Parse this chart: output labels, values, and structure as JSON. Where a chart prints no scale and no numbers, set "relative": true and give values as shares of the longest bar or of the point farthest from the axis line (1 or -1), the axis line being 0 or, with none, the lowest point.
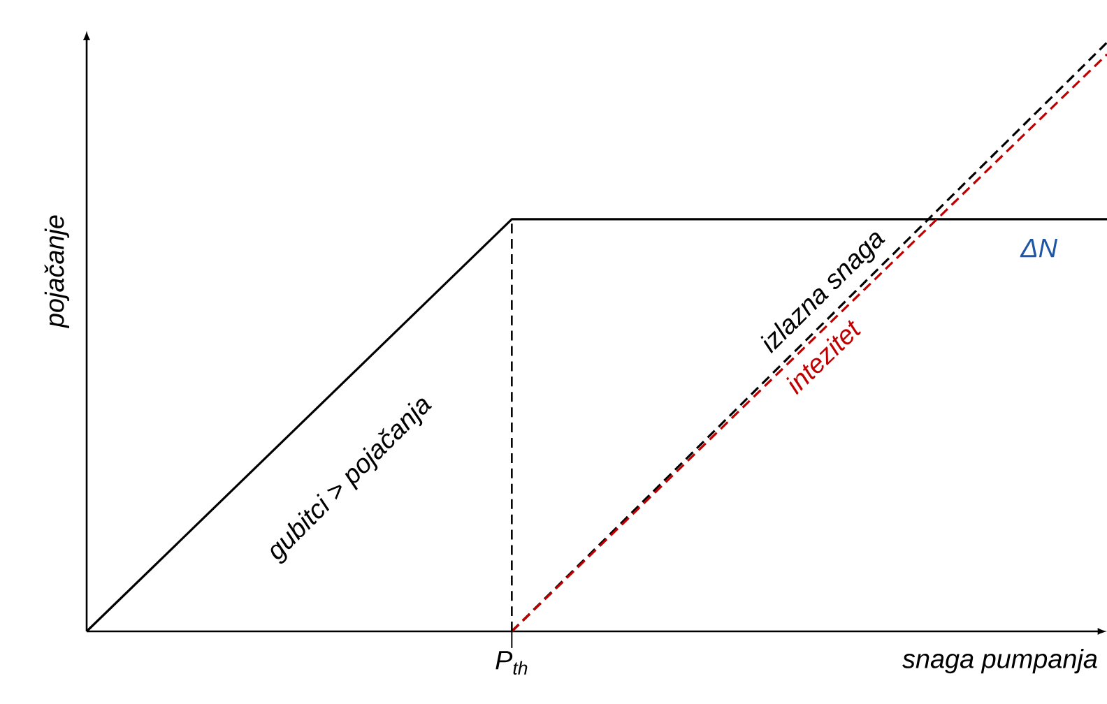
{
  "chart_data": {
    "type": "line",
    "relative": true,
    "xlabel": "snaga pumpanja",
    "ylabel": "pojačanje",
    "categories": [
      null,
      null,
      null,
      null,
      null,
      null,
      null,
      null,
      null,
      null,
      null,
      null,
      null,
      null,
      null,
      null,
      null,
      null,
      null,
      null,
      null,
      null,
      null,
      null,
      null
    ],
    "series": [
      {
        "color": "#000000",
        "line_style": "solid",
        "values": [
          0,
          null,
          null,
          null,
          null,
          null,
          null,
          null,
          null,
          null,
          0.7,
          null,
          null,
          null,
          null,
          null,
          null,
          null,
          null,
          null,
          null,
          null,
          null,
          null,
          0.7
        ]
      },
      {
        "name": "izlazna snaga",
        "color": "#000000",
        "line_style": "dashed",
        "values": [
          null,
          null,
          null,
          null,
          null,
          null,
          null,
          null,
          null,
          null,
          0,
          null,
          null,
          null,
          null,
          null,
          null,
          null,
          null,
          null,
          null,
          null,
          null,
          null,
          1
        ]
      },
      {
        "name": "intezitet",
        "color": "#c00000",
        "line_style": "dashed",
        "values": [
          null,
          null,
          null,
          null,
          null,
          null,
          null,
          null,
          null,
          null,
          0,
          null,
          null,
          null,
          null,
          null,
          null,
          null,
          null,
          null,
          null,
          null,
          null,
          null,
          0.98
        ]
      }
    ],
    "annotations": [
      "gubitci > pojačanja",
      "ΔN",
      "P$_{th}$"
    ]
  }
}
